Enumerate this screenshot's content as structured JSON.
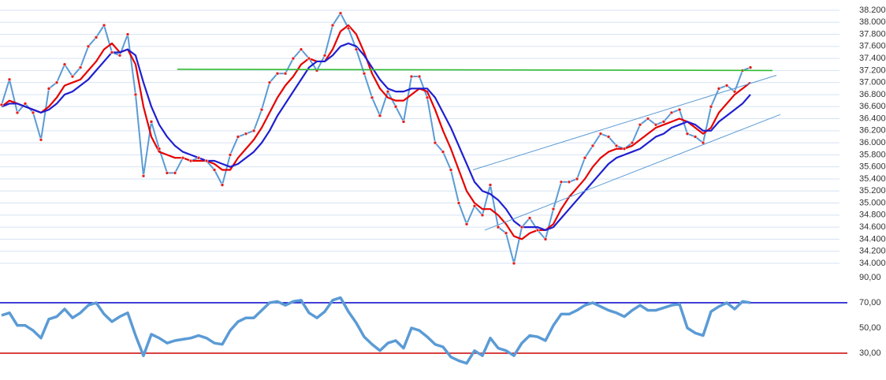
{
  "chart_data": [
    {
      "type": "line",
      "xlim": [
        -0.2,
        106.3
      ],
      "ylim": [
        33.9,
        38.35
      ],
      "grid": true,
      "markers_series": 0,
      "marker_color": "#e02020",
      "yticks": [
        {
          "value": 34,
          "label": "34.000"
        },
        {
          "value": 34.2,
          "label": "34.200"
        },
        {
          "value": 34.4,
          "label": "34.400"
        },
        {
          "value": 34.6,
          "label": "34.600"
        },
        {
          "value": 34.8,
          "label": "34.800"
        },
        {
          "value": 35,
          "label": "35.000"
        },
        {
          "value": 35.2,
          "label": "35.200"
        },
        {
          "value": 35.4,
          "label": "35.400"
        },
        {
          "value": 35.6,
          "label": "35.600"
        },
        {
          "value": 35.8,
          "label": "35.800"
        },
        {
          "value": 36,
          "label": "36.000"
        },
        {
          "value": 36.2,
          "label": "36.200"
        },
        {
          "value": 36.4,
          "label": "36.400"
        },
        {
          "value": 36.6,
          "label": "36.600"
        },
        {
          "value": 36.8,
          "label": "36.800"
        },
        {
          "value": 37,
          "label": "37.000"
        },
        {
          "value": 37.2,
          "label": "37.200"
        },
        {
          "value": 37.4,
          "label": "37.400"
        },
        {
          "value": 37.6,
          "label": "37.600"
        },
        {
          "value": 37.8,
          "label": "37.800"
        },
        {
          "value": 38,
          "label": "38.000"
        },
        {
          "value": 38.2,
          "label": "38.200"
        }
      ],
      "series": [
        {
          "color": "#5b9bd5",
          "width": 2,
          "values": [
            36.63,
            37.05,
            36.5,
            36.65,
            36.5,
            36.05,
            36.9,
            37.0,
            37.3,
            37.1,
            37.25,
            37.6,
            37.75,
            37.95,
            37.5,
            37.45,
            37.8,
            36.8,
            35.45,
            36.35,
            35.9,
            35.5,
            35.5,
            35.75,
            35.7,
            35.75,
            35.7,
            35.55,
            35.3,
            35.8,
            36.1,
            36.15,
            36.2,
            36.55,
            37.0,
            37.15,
            37.15,
            37.4,
            37.55,
            37.4,
            37.2,
            37.45,
            37.95,
            38.15,
            37.9,
            37.55,
            37.15,
            36.75,
            36.45,
            36.85,
            36.6,
            36.35,
            37.1,
            37.1,
            36.75,
            36.0,
            35.85,
            35.55,
            35.0,
            34.65,
            34.95,
            34.8,
            35.3,
            34.6,
            34.5,
            34.0,
            34.6,
            34.75,
            34.55,
            34.4,
            34.9,
            35.35,
            35.35,
            35.4,
            35.75,
            35.95,
            36.15,
            36.1,
            35.95,
            35.9,
            36.0,
            36.3,
            36.4,
            36.3,
            36.35,
            36.5,
            36.55,
            36.15,
            36.1,
            36.0,
            36.6,
            36.9,
            36.95,
            36.85,
            37.2,
            37.25
          ]
        },
        {
          "color": "#e60000",
          "width": 2.2,
          "values": [
            36.6,
            36.7,
            36.65,
            36.6,
            36.55,
            36.5,
            36.6,
            36.75,
            36.95,
            37.0,
            37.05,
            37.2,
            37.35,
            37.55,
            37.65,
            37.5,
            37.55,
            37.3,
            36.6,
            36.1,
            35.85,
            35.8,
            35.75,
            35.75,
            35.7,
            35.7,
            35.7,
            35.65,
            35.55,
            35.55,
            35.75,
            35.9,
            36.05,
            36.25,
            36.5,
            36.75,
            36.95,
            37.1,
            37.3,
            37.4,
            37.35,
            37.35,
            37.55,
            37.85,
            37.95,
            37.8,
            37.5,
            37.15,
            36.9,
            36.75,
            36.7,
            36.7,
            36.8,
            36.9,
            36.85,
            36.55,
            36.2,
            35.9,
            35.55,
            35.2,
            35.0,
            34.9,
            34.9,
            34.8,
            34.65,
            34.45,
            34.4,
            34.5,
            34.55,
            34.55,
            34.65,
            34.9,
            35.1,
            35.25,
            35.4,
            35.6,
            35.75,
            35.85,
            35.9,
            35.9,
            35.95,
            36.05,
            36.15,
            36.25,
            36.3,
            36.35,
            36.4,
            36.35,
            36.25,
            36.15,
            36.25,
            36.5,
            36.65,
            36.8,
            36.9,
            37.0
          ]
        },
        {
          "color": "#1f1fd0",
          "width": 2.2,
          "values": [
            36.6,
            36.65,
            36.65,
            36.6,
            36.55,
            36.5,
            36.55,
            36.65,
            36.8,
            36.85,
            36.95,
            37.05,
            37.2,
            37.35,
            37.5,
            37.5,
            37.55,
            37.45,
            37.0,
            36.6,
            36.3,
            36.1,
            35.95,
            35.85,
            35.8,
            35.75,
            35.7,
            35.7,
            35.65,
            35.6,
            35.65,
            35.75,
            35.85,
            36.0,
            36.2,
            36.45,
            36.65,
            36.85,
            37.05,
            37.25,
            37.35,
            37.35,
            37.45,
            37.6,
            37.65,
            37.6,
            37.45,
            37.25,
            37.05,
            36.9,
            36.85,
            36.85,
            36.9,
            36.9,
            36.9,
            36.75,
            36.5,
            36.25,
            35.95,
            35.65,
            35.35,
            35.2,
            35.15,
            35.05,
            34.9,
            34.7,
            34.6,
            34.6,
            34.6,
            34.55,
            34.6,
            34.75,
            34.9,
            35.05,
            35.2,
            35.35,
            35.5,
            35.65,
            35.75,
            35.8,
            35.85,
            35.9,
            36.0,
            36.1,
            36.15,
            36.25,
            36.3,
            36.35,
            36.3,
            36.2,
            36.2,
            36.35,
            36.45,
            36.55,
            36.65,
            36.8
          ]
        }
      ],
      "trendlines": [
        {
          "color": "#33bb33",
          "width": 1.6,
          "x": [
            22.3,
            97.8
          ],
          "values": [
            37.22,
            37.2
          ]
        },
        {
          "color": "#5b9bd5",
          "width": 1,
          "x": [
            59.8,
            98.3
          ],
          "values": [
            35.55,
            37.12
          ]
        },
        {
          "color": "#5b9bd5",
          "width": 1,
          "x": [
            61.3,
            98.8
          ],
          "values": [
            34.55,
            36.47
          ]
        }
      ]
    },
    {
      "type": "line",
      "xlim": [
        -0.2,
        106.3
      ],
      "ylim": [
        10,
        90
      ],
      "grid": false,
      "yticks": [
        {
          "value": 30,
          "label": "30,00"
        },
        {
          "value": 50,
          "label": "50,00"
        },
        {
          "value": 70,
          "label": "70,00"
        },
        {
          "value": 90,
          "label": "90,00"
        }
      ],
      "reference_lines": [
        {
          "value": 70,
          "color": "#0000c8"
        },
        {
          "value": 30,
          "color": "#cc0000"
        }
      ],
      "series": [
        {
          "color": "#5b9bd5",
          "width": 3.5,
          "values": [
            60,
            62,
            52,
            52,
            48,
            42,
            57,
            59,
            65,
            58,
            62,
            68,
            70,
            61,
            55,
            59,
            62,
            44,
            28,
            45,
            42,
            38,
            40,
            41,
            42,
            44,
            42,
            38,
            37,
            48,
            55,
            58,
            58,
            64,
            70,
            71,
            68,
            71,
            72,
            62,
            58,
            63,
            72,
            74,
            63,
            54,
            43,
            37,
            32,
            38,
            40,
            34,
            50,
            48,
            43,
            37,
            35,
            27,
            24,
            22,
            32,
            28,
            42,
            34,
            32,
            28,
            38,
            44,
            43,
            40,
            52,
            61,
            61,
            64,
            68,
            70,
            67,
            64,
            62,
            59,
            64,
            68,
            64,
            64,
            66,
            68,
            69,
            50,
            46,
            44,
            63,
            67,
            70,
            65,
            71,
            70
          ]
        }
      ]
    }
  ]
}
